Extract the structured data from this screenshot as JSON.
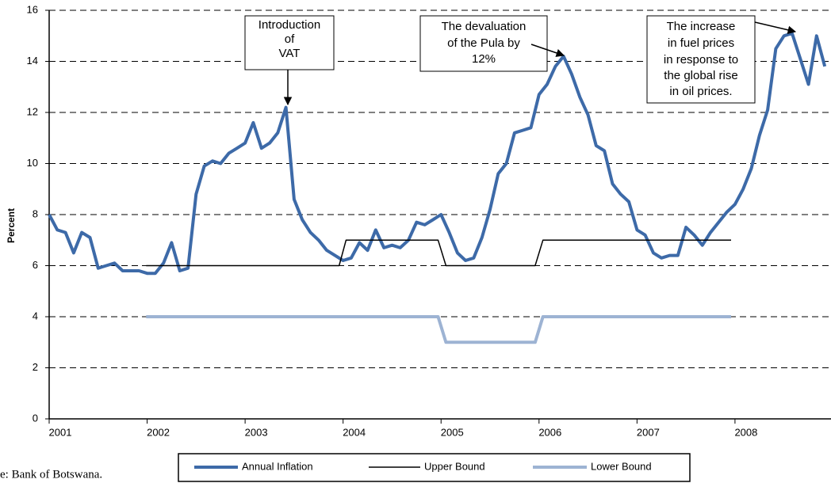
{
  "chart_data": {
    "type": "line",
    "y_label": "Percent",
    "source": "e: Bank of Botswana.",
    "xlim": [
      2001,
      2008.98
    ],
    "xticks": [
      2001,
      2002,
      2003,
      2004,
      2005,
      2006,
      2007,
      2008
    ],
    "ylim": [
      0,
      16
    ],
    "yticks": [
      0,
      2,
      4,
      6,
      8,
      10,
      12,
      14,
      16
    ],
    "grid": true,
    "legend": "bottom",
    "series": [
      {
        "name": "Annual Inflation",
        "color": "#3d6aa8",
        "width": 4,
        "x": [
          2001,
          2001.083,
          2001.167,
          2001.25,
          2001.333,
          2001.417,
          2001.5,
          2001.583,
          2001.667,
          2001.75,
          2001.833,
          2001.917,
          2002,
          2002.083,
          2002.167,
          2002.25,
          2002.333,
          2002.417,
          2002.5,
          2002.583,
          2002.667,
          2002.75,
          2002.833,
          2002.917,
          2003,
          2003.083,
          2003.167,
          2003.25,
          2003.333,
          2003.417,
          2003.5,
          2003.583,
          2003.667,
          2003.75,
          2003.833,
          2003.917,
          2004,
          2004.083,
          2004.167,
          2004.25,
          2004.333,
          2004.417,
          2004.5,
          2004.583,
          2004.667,
          2004.75,
          2004.833,
          2004.917,
          2005,
          2005.083,
          2005.167,
          2005.25,
          2005.333,
          2005.417,
          2005.5,
          2005.583,
          2005.667,
          2005.75,
          2005.833,
          2005.917,
          2006,
          2006.083,
          2006.167,
          2006.25,
          2006.333,
          2006.417,
          2006.5,
          2006.583,
          2006.667,
          2006.75,
          2006.833,
          2006.917,
          2007,
          2007.083,
          2007.167,
          2007.25,
          2007.333,
          2007.417,
          2007.5,
          2007.583,
          2007.667,
          2007.75,
          2007.833,
          2007.917,
          2008,
          2008.083,
          2008.167,
          2008.25,
          2008.333,
          2008.417,
          2008.5,
          2008.583,
          2008.667,
          2008.75,
          2008.833,
          2008.917
        ],
        "values": [
          8.0,
          7.4,
          7.3,
          6.5,
          7.3,
          7.1,
          5.9,
          6.0,
          6.1,
          5.8,
          5.8,
          5.8,
          5.7,
          5.7,
          6.1,
          6.9,
          5.8,
          5.9,
          8.8,
          9.9,
          10.1,
          10.0,
          10.4,
          10.6,
          10.8,
          11.6,
          10.6,
          10.8,
          11.2,
          12.2,
          8.6,
          7.8,
          7.3,
          7.0,
          6.6,
          6.4,
          6.2,
          6.3,
          6.9,
          6.6,
          7.4,
          6.7,
          6.8,
          6.7,
          7.0,
          7.7,
          7.6,
          7.8,
          8.0,
          7.3,
          6.5,
          6.2,
          6.3,
          7.1,
          8.2,
          9.6,
          10.0,
          11.2,
          11.3,
          11.4,
          12.7,
          13.1,
          13.8,
          14.2,
          13.5,
          12.6,
          11.9,
          10.7,
          10.5,
          9.2,
          8.8,
          8.5,
          7.4,
          7.2,
          6.5,
          6.3,
          6.4,
          6.4,
          7.5,
          7.2,
          6.8,
          7.3,
          7.7,
          8.1,
          8.4,
          9.0,
          9.8,
          11.1,
          12.1,
          14.5,
          15.0,
          15.1,
          14.1,
          13.1,
          15.0,
          13.8
        ]
      },
      {
        "name": "Upper Bound",
        "color": "#000000",
        "width": 1.5,
        "x": [
          2001.99,
          2003.96,
          2004.03,
          2004.97,
          2005.05,
          2005.96,
          2006.04,
          2007.96
        ],
        "values": [
          6,
          6,
          7,
          7,
          6,
          6,
          7,
          7
        ]
      },
      {
        "name": "Lower Bound",
        "color": "#9db3d3",
        "width": 4,
        "x": [
          2001.99,
          2003.96,
          2004.03,
          2004.97,
          2005.05,
          2005.96,
          2006.04,
          2007.96
        ],
        "values": [
          4,
          4,
          4,
          4,
          3,
          3,
          4,
          4
        ]
      }
    ],
    "annotations": [
      {
        "lines": [
          "Introduction",
          "of",
          "VAT"
        ]
      },
      {
        "lines": [
          "The devaluation",
          "of the Pula by",
          "12%"
        ]
      },
      {
        "lines": [
          "The increase",
          "in fuel prices",
          "in response to",
          "the global rise",
          "in oil prices."
        ]
      }
    ]
  }
}
